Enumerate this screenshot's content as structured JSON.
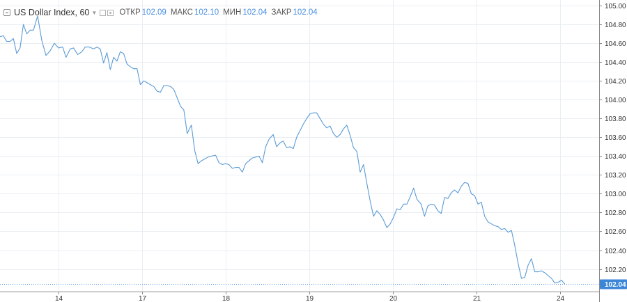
{
  "header": {
    "symbol": "US Dollar Index, 60",
    "ohlc": [
      {
        "label": "ОТКР",
        "value": "102.09"
      },
      {
        "label": "МАКС",
        "value": "102.10"
      },
      {
        "label": "МИН",
        "value": "102.04"
      },
      {
        "label": "ЗАКР",
        "value": "102.04"
      }
    ]
  },
  "colors": {
    "line": "#5b9bd5",
    "grid": "#e9eef2",
    "axis_text": "#333333",
    "price_tag_bg": "#3b86d6",
    "price_tag_text": "#ffffff",
    "crosshair_dots": "#4a90e2"
  },
  "chart_data": {
    "type": "line",
    "title": "US Dollar Index, 60",
    "ylim": [
      101.96,
      105.06
    ],
    "xlim": [
      0,
      71.7
    ],
    "y_ticks": [
      "105.00",
      "104.80",
      "104.60",
      "104.40",
      "104.20",
      "104.00",
      "103.80",
      "103.60",
      "103.40",
      "103.20",
      "103.00",
      "102.80",
      "102.60",
      "102.40",
      "102.20"
    ],
    "x_ticks": [
      {
        "label": "14",
        "x": 7
      },
      {
        "label": "17",
        "x": 17
      },
      {
        "label": "18",
        "x": 27
      },
      {
        "label": "19",
        "x": 37
      },
      {
        "label": "20",
        "x": 47
      },
      {
        "label": "21",
        "x": 57
      },
      {
        "label": "24",
        "x": 67
      }
    ],
    "last_price": "102.04",
    "series": [
      {
        "values": [
          [
            0.0,
            104.67
          ],
          [
            0.4,
            104.68
          ],
          [
            0.8,
            104.62
          ],
          [
            1.2,
            104.62
          ],
          [
            1.6,
            104.65
          ],
          [
            2.0,
            104.49
          ],
          [
            2.4,
            104.55
          ],
          [
            2.8,
            104.8
          ],
          [
            3.2,
            104.7
          ],
          [
            3.6,
            104.74
          ],
          [
            4.0,
            104.74
          ],
          [
            4.5,
            104.89
          ],
          [
            5.0,
            104.63
          ],
          [
            5.5,
            104.47
          ],
          [
            6.0,
            104.52
          ],
          [
            6.5,
            104.6
          ],
          [
            7.0,
            104.55
          ],
          [
            7.5,
            104.56
          ],
          [
            7.9,
            104.45
          ],
          [
            8.4,
            104.54
          ],
          [
            8.8,
            104.55
          ],
          [
            9.3,
            104.48
          ],
          [
            9.8,
            104.51
          ],
          [
            10.2,
            104.56
          ],
          [
            10.7,
            104.56
          ],
          [
            11.2,
            104.54
          ],
          [
            11.6,
            104.56
          ],
          [
            12.0,
            104.54
          ],
          [
            12.4,
            104.39
          ],
          [
            12.8,
            104.5
          ],
          [
            13.2,
            104.32
          ],
          [
            13.6,
            104.45
          ],
          [
            14.0,
            104.41
          ],
          [
            14.4,
            104.51
          ],
          [
            14.8,
            104.49
          ],
          [
            15.2,
            104.38
          ],
          [
            15.6,
            104.35
          ],
          [
            16.0,
            104.33
          ],
          [
            16.4,
            104.33
          ],
          [
            16.8,
            104.16
          ],
          [
            17.2,
            104.2
          ],
          [
            17.6,
            104.18
          ],
          [
            18.0,
            104.16
          ],
          [
            18.4,
            104.14
          ],
          [
            18.8,
            104.09
          ],
          [
            19.2,
            104.08
          ],
          [
            19.6,
            104.15
          ],
          [
            20.0,
            104.15
          ],
          [
            20.4,
            104.14
          ],
          [
            20.8,
            104.11
          ],
          [
            21.2,
            104.02
          ],
          [
            21.6,
            103.93
          ],
          [
            22.0,
            103.89
          ],
          [
            22.4,
            103.64
          ],
          [
            22.9,
            103.73
          ],
          [
            23.3,
            103.46
          ],
          [
            23.7,
            103.32
          ],
          [
            24.1,
            103.35
          ],
          [
            24.5,
            103.37
          ],
          [
            24.9,
            103.39
          ],
          [
            25.3,
            103.4
          ],
          [
            25.8,
            103.41
          ],
          [
            26.2,
            103.33
          ],
          [
            26.6,
            103.31
          ],
          [
            27.0,
            103.32
          ],
          [
            27.4,
            103.31
          ],
          [
            27.8,
            103.27
          ],
          [
            28.2,
            103.28
          ],
          [
            28.6,
            103.28
          ],
          [
            29.0,
            103.23
          ],
          [
            29.4,
            103.32
          ],
          [
            29.8,
            103.35
          ],
          [
            30.2,
            103.38
          ],
          [
            30.6,
            103.39
          ],
          [
            31.0,
            103.4
          ],
          [
            31.4,
            103.33
          ],
          [
            31.8,
            103.5
          ],
          [
            32.2,
            103.58
          ],
          [
            32.7,
            103.63
          ],
          [
            33.1,
            103.5
          ],
          [
            33.5,
            103.54
          ],
          [
            33.9,
            103.56
          ],
          [
            34.3,
            103.49
          ],
          [
            34.7,
            103.5
          ],
          [
            35.1,
            103.48
          ],
          [
            35.5,
            103.6
          ],
          [
            35.9,
            103.67
          ],
          [
            36.3,
            103.74
          ],
          [
            36.7,
            103.8
          ],
          [
            37.1,
            103.85
          ],
          [
            37.5,
            103.86
          ],
          [
            37.9,
            103.86
          ],
          [
            38.3,
            103.8
          ],
          [
            38.7,
            103.74
          ],
          [
            39.1,
            103.7
          ],
          [
            39.5,
            103.72
          ],
          [
            39.9,
            103.64
          ],
          [
            40.3,
            103.6
          ],
          [
            40.7,
            103.63
          ],
          [
            41.1,
            103.69
          ],
          [
            41.5,
            103.73
          ],
          [
            41.9,
            103.62
          ],
          [
            42.3,
            103.49
          ],
          [
            42.7,
            103.45
          ],
          [
            43.1,
            103.23
          ],
          [
            43.5,
            103.31
          ],
          [
            43.9,
            103.11
          ],
          [
            44.3,
            102.92
          ],
          [
            44.7,
            102.76
          ],
          [
            45.1,
            102.82
          ],
          [
            45.5,
            102.78
          ],
          [
            45.9,
            102.72
          ],
          [
            46.3,
            102.64
          ],
          [
            46.7,
            102.68
          ],
          [
            47.1,
            102.75
          ],
          [
            47.5,
            102.84
          ],
          [
            47.9,
            102.83
          ],
          [
            48.3,
            102.89
          ],
          [
            48.7,
            102.89
          ],
          [
            49.1,
            102.97
          ],
          [
            49.5,
            103.06
          ],
          [
            49.9,
            102.94
          ],
          [
            50.4,
            102.89
          ],
          [
            50.8,
            102.76
          ],
          [
            51.2,
            102.87
          ],
          [
            51.6,
            102.89
          ],
          [
            52.0,
            102.88
          ],
          [
            52.4,
            102.82
          ],
          [
            52.8,
            102.79
          ],
          [
            53.2,
            102.96
          ],
          [
            53.6,
            102.95
          ],
          [
            54.0,
            103.01
          ],
          [
            54.4,
            103.04
          ],
          [
            54.8,
            103.01
          ],
          [
            55.2,
            103.08
          ],
          [
            55.6,
            103.12
          ],
          [
            56.0,
            103.11
          ],
          [
            56.4,
            103.0
          ],
          [
            56.8,
            102.98
          ],
          [
            57.2,
            102.89
          ],
          [
            57.6,
            102.91
          ],
          [
            58.0,
            102.76
          ],
          [
            58.4,
            102.7
          ],
          [
            58.8,
            102.68
          ],
          [
            59.2,
            102.66
          ],
          [
            59.6,
            102.65
          ],
          [
            60.0,
            102.62
          ],
          [
            60.4,
            102.63
          ],
          [
            60.8,
            102.59
          ],
          [
            61.2,
            102.61
          ],
          [
            61.6,
            102.45
          ],
          [
            62.0,
            102.26
          ],
          [
            62.4,
            102.1
          ],
          [
            62.8,
            102.11
          ],
          [
            63.2,
            102.24
          ],
          [
            63.6,
            102.31
          ],
          [
            64.0,
            102.17
          ],
          [
            64.4,
            102.17
          ],
          [
            64.8,
            102.18
          ],
          [
            65.2,
            102.16
          ],
          [
            65.6,
            102.13
          ],
          [
            66.0,
            102.1
          ],
          [
            66.4,
            102.05
          ],
          [
            66.8,
            102.06
          ],
          [
            67.2,
            102.08
          ],
          [
            67.6,
            102.04
          ]
        ]
      }
    ]
  }
}
